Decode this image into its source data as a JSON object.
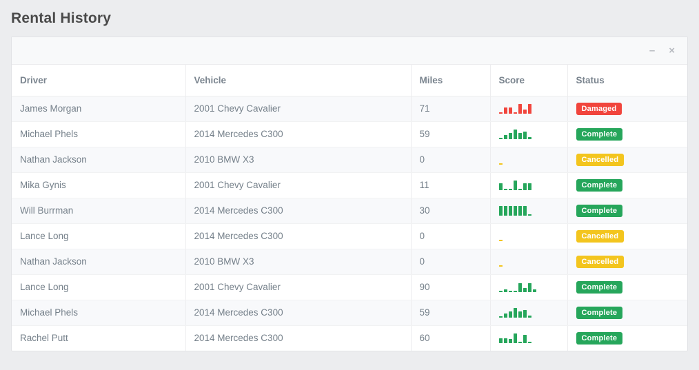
{
  "page": {
    "title": "Rental History"
  },
  "panel": {
    "minimize_icon": "–",
    "close_icon": "×"
  },
  "colors": {
    "damaged_red": "#f1453d",
    "complete_green": "#26a65b",
    "cancelled_yellow": "#f3c51e"
  },
  "table": {
    "columns": {
      "driver": "Driver",
      "vehicle": "Vehicle",
      "miles": "Miles",
      "score": "Score",
      "status": "Status"
    },
    "rows": [
      {
        "driver": "James Morgan",
        "vehicle": "2001 Chevy Cavalier",
        "miles": "71",
        "status": "Damaged",
        "badge_bg": "#f1453d",
        "spark_color": "#f1453d",
        "spark": [
          2,
          9,
          9,
          2,
          14,
          6,
          14
        ]
      },
      {
        "driver": "Michael Phels",
        "vehicle": "2014 Mercedes C300",
        "miles": "59",
        "status": "Complete",
        "badge_bg": "#26a65b",
        "spark_color": "#26a65b",
        "spark": [
          2,
          6,
          9,
          14,
          9,
          11,
          3
        ]
      },
      {
        "driver": "Nathan Jackson",
        "vehicle": "2010 BMW X3",
        "miles": "0",
        "status": "Cancelled",
        "badge_bg": "#f3c51e",
        "spark_color": "#f3c51e",
        "spark": [
          2
        ]
      },
      {
        "driver": "Mika Gynis",
        "vehicle": "2001 Chevy Cavalier",
        "miles": "11",
        "status": "Complete",
        "badge_bg": "#26a65b",
        "spark_color": "#26a65b",
        "spark": [
          10,
          2,
          2,
          14,
          2,
          10,
          10
        ]
      },
      {
        "driver": "Will Burrman",
        "vehicle": "2014 Mercedes C300",
        "miles": "30",
        "status": "Complete",
        "badge_bg": "#26a65b",
        "spark_color": "#26a65b",
        "spark": [
          14,
          14,
          14,
          14,
          14,
          14,
          2
        ]
      },
      {
        "driver": "Lance Long",
        "vehicle": "2014 Mercedes C300",
        "miles": "0",
        "status": "Cancelled",
        "badge_bg": "#f3c51e",
        "spark_color": "#f3c51e",
        "spark": [
          2
        ]
      },
      {
        "driver": "Nathan Jackson",
        "vehicle": "2010 BMW X3",
        "miles": "0",
        "status": "Cancelled",
        "badge_bg": "#f3c51e",
        "spark_color": "#f3c51e",
        "spark": [
          2
        ]
      },
      {
        "driver": "Lance Long",
        "vehicle": "2001 Chevy Cavalier",
        "miles": "90",
        "status": "Complete",
        "badge_bg": "#26a65b",
        "spark_color": "#26a65b",
        "spark": [
          2,
          4,
          2,
          2,
          13,
          6,
          13,
          4
        ]
      },
      {
        "driver": "Michael Phels",
        "vehicle": "2014 Mercedes C300",
        "miles": "59",
        "status": "Complete",
        "badge_bg": "#26a65b",
        "spark_color": "#26a65b",
        "spark": [
          2,
          6,
          9,
          14,
          9,
          11,
          3
        ]
      },
      {
        "driver": "Rachel Putt",
        "vehicle": "2014 Mercedes C300",
        "miles": "60",
        "status": "Complete",
        "badge_bg": "#26a65b",
        "spark_color": "#26a65b",
        "spark": [
          7,
          7,
          6,
          14,
          2,
          12,
          2
        ]
      }
    ]
  }
}
